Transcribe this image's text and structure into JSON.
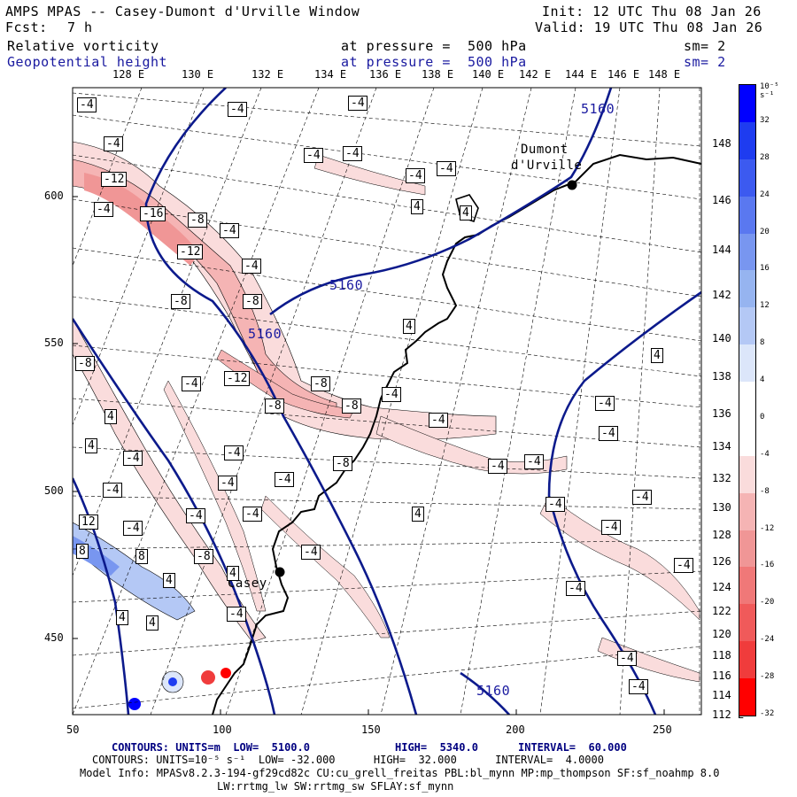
{
  "header": {
    "title": "AMPS MPAS -- Casey-Dumont d'Urville Window",
    "fcst_label": "Fcst:",
    "fcst_value": "7 h",
    "init": "Init: 12 UTC Thu 08 Jan 26",
    "valid": "Valid: 19 UTC Thu 08 Jan 26",
    "field1": "Relative vorticity",
    "field2": "Geopotential height",
    "pressure1": "at pressure =  500 hPa",
    "pressure2": "at pressure =  500 hPa",
    "sm1": "sm= 2",
    "sm2": "sm= 2"
  },
  "lon_labels": [
    "128 E",
    "130 E",
    "132 E",
    "134 E",
    "136 E",
    "138 E",
    "140 E",
    "142 E",
    "144 E",
    "146 E",
    "148 E"
  ],
  "lat_labels_right": [
    "148 E",
    "146 E",
    "144 E",
    "142 E",
    "140 E",
    "138 E",
    "136 E",
    "134 E",
    "132 E",
    "130 E",
    "128 E",
    "126 E",
    "124 E",
    "122 E",
    "120 E",
    "118 E",
    "116 E",
    "114 E",
    "112 E"
  ],
  "y_axis": [
    "600",
    "550",
    "500",
    "450"
  ],
  "x_axis": [
    "50",
    "100",
    "150",
    "200",
    "250"
  ],
  "colorbar": {
    "unit": "10⁻⁵ s⁻¹",
    "labels": [
      "32",
      "28",
      "24",
      "20",
      "16",
      "12",
      "8",
      "4",
      "0",
      "-4",
      "-8",
      "-12",
      "-16",
      "-20",
      "-24",
      "-28",
      "-32"
    ],
    "colors": [
      "#0000ff",
      "#1e3cf0",
      "#3c5af0",
      "#5a78f0",
      "#7896f0",
      "#96b4f0",
      "#b4c8f5",
      "#dce6fa",
      "#ffffff",
      "#ffffff",
      "#fadcdc",
      "#f5b4b4",
      "#f09696",
      "#f07878",
      "#f05a5a",
      "#f03c3c",
      "#ff0000"
    ]
  },
  "places": {
    "dumont": "Dumont",
    "durville": "d'Urville",
    "casey": "Casey"
  },
  "height_labels": [
    "5160",
    "5160",
    "5160",
    "5160"
  ],
  "vort_labels": [
    "-4",
    "-4",
    "-4",
    "-4",
    "-4",
    "-4",
    "-4",
    "-4",
    "-12",
    "-4",
    "-16",
    "-8",
    "-4",
    "-12",
    "-4",
    "-8",
    "-8",
    "4",
    "-8",
    "-4",
    "-12",
    "-8",
    "-8",
    "-8",
    "-4",
    "-4",
    "-4",
    "-4",
    "-4",
    "-8",
    "-4",
    "-4",
    "-4",
    "-4",
    "-4",
    "-4",
    "-4",
    "4",
    "-4",
    "-4",
    "-4",
    "-4",
    "12",
    "-4",
    "8",
    "8",
    "-8",
    "-4",
    "4",
    "-4",
    "4",
    "-4",
    "-4",
    "-4",
    "4",
    "4",
    "4",
    "4",
    "4",
    "4",
    "4",
    "-4"
  ],
  "footer": {
    "line1_a": "CONTOURS: UNITS=m  LOW=  5100.0",
    "line1_b": "HIGH=  5340.0",
    "line1_c": "INTERVAL=  60.000",
    "line2": "CONTOURS: UNITS=10⁻⁵ s⁻¹  LOW= -32.000      HIGH=  32.000      INTERVAL=  4.0000",
    "line3": "Model Info: MPASv8.2.3-194-gf29cd82c CU:cu_grell_freitas PBL:bl_mynn MP:mp_thompson SF:sf_noahmp 8.0",
    "line4": "LW:rrtmg_lw SW:rrtmg_sw SFLAY:sf_mynn"
  }
}
